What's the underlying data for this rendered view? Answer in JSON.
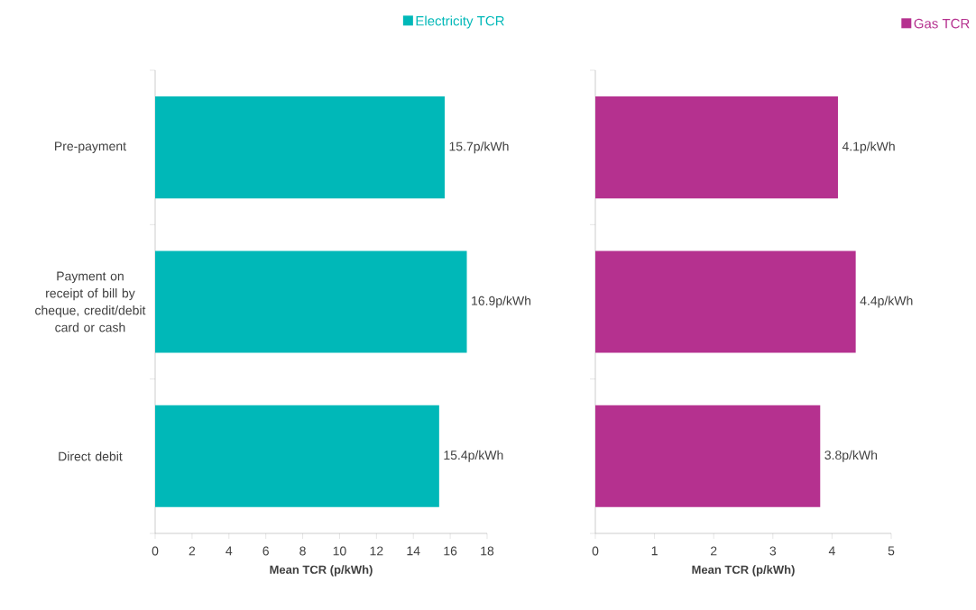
{
  "chart_data": [
    {
      "type": "bar",
      "orientation": "horizontal",
      "categories": [
        "Pre-payment",
        "Payment on receipt of bill by cheque, credit/debit card or cash",
        "Direct debit"
      ],
      "series": [
        {
          "name": "Electricity TCR",
          "color": "#00b8b8",
          "values": [
            15.7,
            16.9,
            15.4
          ],
          "value_labels": [
            "15.7p/kWh",
            "16.9p/kWh",
            "15.4p/kWh"
          ]
        }
      ],
      "xlabel": "Mean TCR (p/kWh)",
      "xlim": [
        0,
        18
      ],
      "xticks": [
        0,
        2,
        4,
        6,
        8,
        10,
        12,
        14,
        16,
        18
      ],
      "legend": "top"
    },
    {
      "type": "bar",
      "orientation": "horizontal",
      "categories": [
        null,
        null,
        null
      ],
      "series": [
        {
          "name": "Gas TCR",
          "color": "#b5318f",
          "values": [
            4.1,
            4.4,
            3.8
          ],
          "value_labels": [
            "4.1p/kWh",
            "4.4p/kWh",
            "3.8p/kWh"
          ]
        }
      ],
      "xlabel": "Mean TCR (p/kWh)",
      "xlim": [
        0,
        5
      ],
      "xticks": [
        0,
        1,
        2,
        3,
        4,
        5
      ],
      "legend": "top right",
      "tick_labels": "x"
    }
  ]
}
